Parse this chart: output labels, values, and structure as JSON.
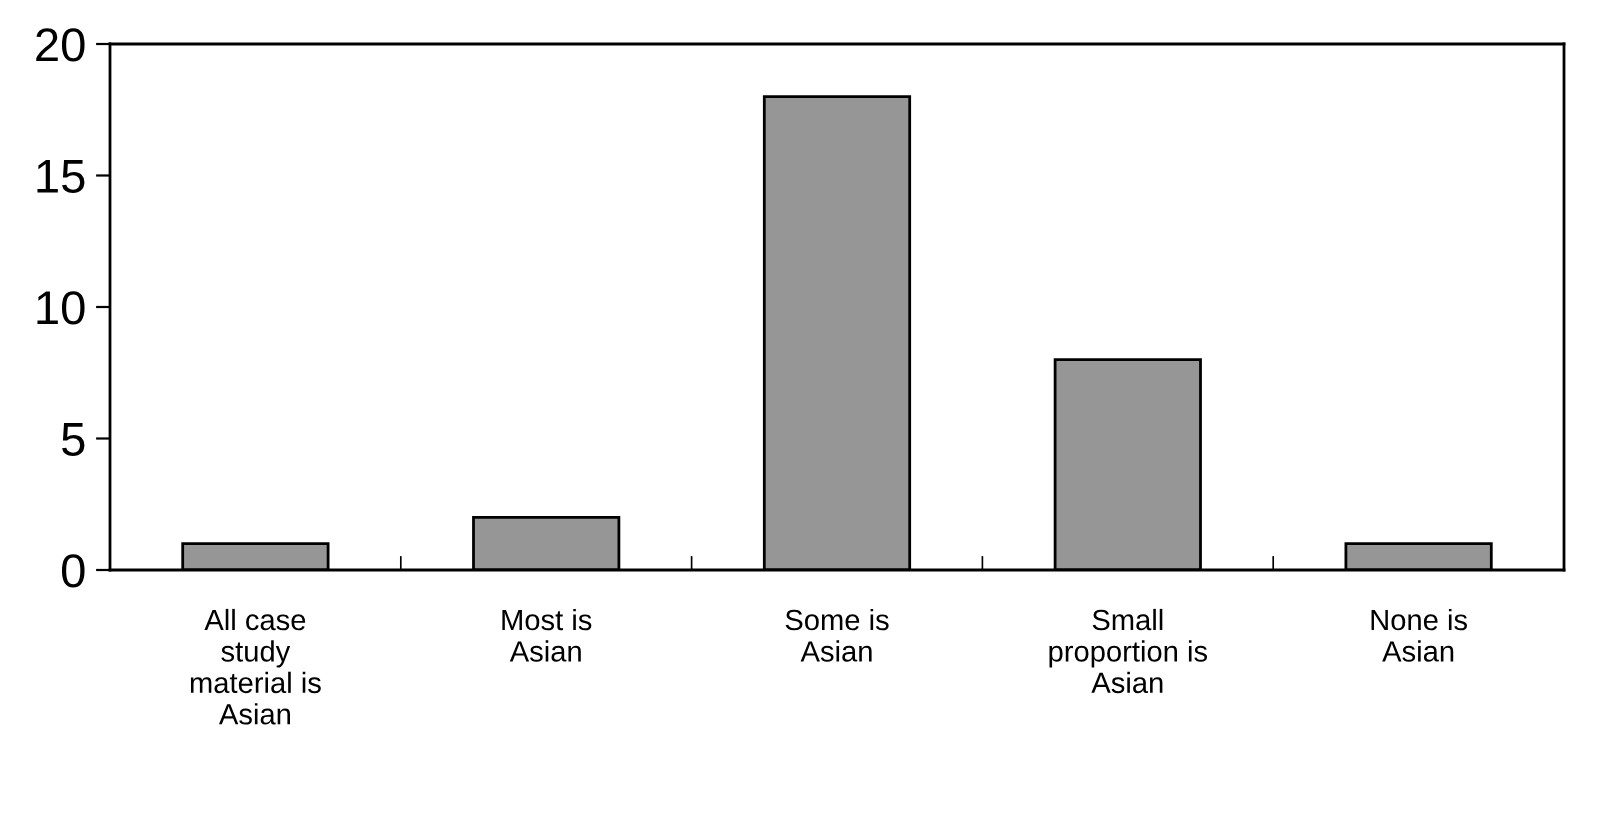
{
  "chart_data": {
    "type": "bar",
    "categories": [
      "All case\nstudy\nmaterial is\nAsian",
      "Most is\nAsian",
      "Some is\nAsian",
      "Small\nproportion is\nAsian",
      "None is\nAsian"
    ],
    "values": [
      1,
      2,
      18,
      8,
      1
    ],
    "color": "#969696",
    "ylim": [
      0,
      20
    ],
    "yticks": [
      0,
      5,
      10,
      15,
      20
    ],
    "grid": false,
    "legend": false
  }
}
